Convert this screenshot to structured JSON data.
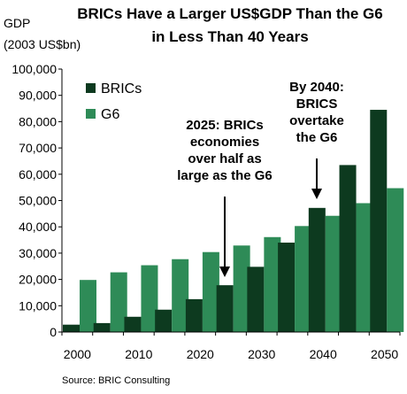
{
  "chart_data": {
    "type": "bar",
    "title_line1": "BRICs Have a Larger US$GDP Than the G6",
    "title_line2": "in Less Than 40 Years",
    "ylabel_line1": "GDP",
    "ylabel_line2": "(2003 US$bn)",
    "ylim": [
      0,
      100000
    ],
    "y_ticks": [
      "0",
      "10,000",
      "20,000",
      "30,000",
      "40,000",
      "50,000",
      "60,000",
      "70,000",
      "80,000",
      "90,000",
      "100,000"
    ],
    "y_tick_values": [
      0,
      10000,
      20000,
      30000,
      40000,
      50000,
      60000,
      70000,
      80000,
      90000,
      100000
    ],
    "x": [
      2000,
      2005,
      2010,
      2015,
      2020,
      2025,
      2030,
      2035,
      2040,
      2045,
      2050
    ],
    "x_tick_labels": [
      "2000",
      "2010",
      "2020",
      "2030",
      "2040",
      "2050"
    ],
    "series": [
      {
        "name": "BRICs",
        "color": "#0d3a1f",
        "values": [
          2800,
          3400,
          5800,
          8500,
          12500,
          17800,
          24800,
          34000,
          47200,
          63500,
          84500
        ]
      },
      {
        "name": "G6",
        "color": "#2e8b57",
        "values": [
          19800,
          22700,
          25400,
          27700,
          30400,
          32900,
          36100,
          40300,
          44200,
          49000,
          54700
        ]
      }
    ],
    "legend_position": "top-left",
    "grid": false,
    "annotations": [
      {
        "id": "ann-2025",
        "lines": [
          "2025: BRICs",
          "economies",
          "over half as",
          "large as the G6"
        ],
        "target_x": 2025
      },
      {
        "id": "ann-2040",
        "lines": [
          "By 2040:",
          "BRICS",
          "overtake",
          "the G6"
        ],
        "target_x": 2040
      }
    ],
    "source": "Source: BRIC Consulting"
  }
}
